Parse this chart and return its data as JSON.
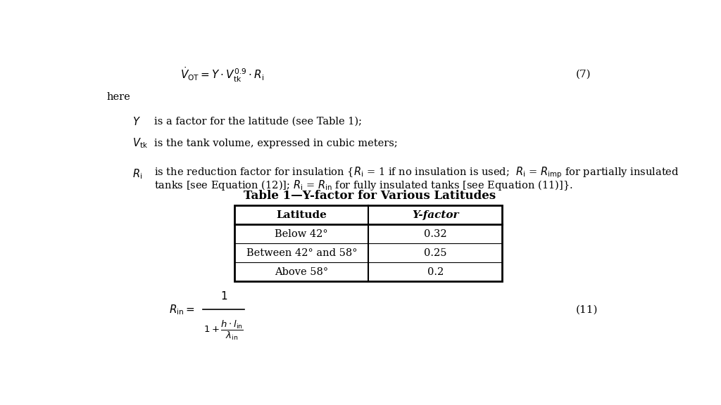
{
  "bg_color": "#ffffff",
  "eq7_label": "(7)",
  "eq11_label": "(11)",
  "table_title": "Table 1—Y-factor for Various Latitudes",
  "table_headers": [
    "Latitude",
    "Y-factor"
  ],
  "table_rows": [
    [
      "Below 42°",
      "0.32"
    ],
    [
      "Between 42° and 58°",
      "0.25"
    ],
    [
      "Above 58°",
      "0.2"
    ]
  ],
  "here_text": "here",
  "y_desc": "is a factor for the latitude (see Table 1);",
  "vtk_desc": "is the tank volume, expressed in cubic meters;",
  "ri_line1": "is the reduction factor for insulation {$R_{\\mathrm{i}}$ = 1 if no insulation is used;  $R_{\\mathrm{i}}$ = $R_{\\mathrm{imp}}$ for partially insulated",
  "ri_line2": "tanks [see Equation (12)]; $R_{\\mathrm{i}}$ = $R_{\\mathrm{in}}$ for fully insulated tanks [see Equation (11)]}."
}
